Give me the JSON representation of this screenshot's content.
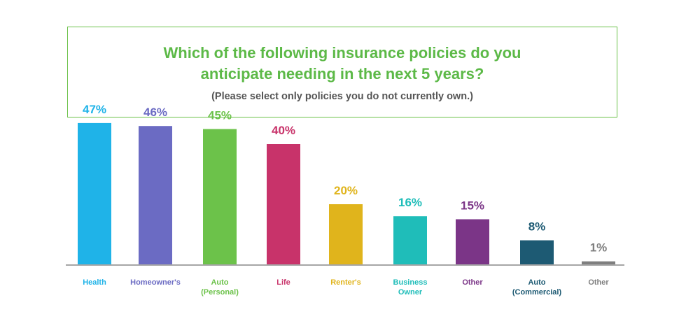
{
  "chart_data": {
    "type": "bar",
    "title": "Which of the following insurance policies do you anticipate needing in the next 5 years?",
    "title_lines": [
      "Which of the following insurance policies do you",
      "anticipate needing in the next 5 years?"
    ],
    "subtitle": "(Please select only policies you do not currently own.)",
    "categories": [
      [
        "Health"
      ],
      [
        "Homeowner's"
      ],
      [
        "Auto",
        "(Personal)"
      ],
      [
        "Life"
      ],
      [
        "Renter's"
      ],
      [
        "Business",
        "Owner"
      ],
      [
        "Other"
      ],
      [
        "Auto",
        "(Commercial)"
      ],
      [
        "Other"
      ]
    ],
    "values": [
      47,
      46,
      45,
      40,
      20,
      16,
      15,
      8,
      1
    ],
    "value_labels": [
      "47%",
      "46%",
      "45%",
      "40%",
      "20%",
      "16%",
      "15%",
      "8%",
      "1%"
    ],
    "colors": [
      "#1fb3e8",
      "#6b6bc3",
      "#6cc24a",
      "#c8336a",
      "#e0b41c",
      "#1fbdb9",
      "#7b3587",
      "#1d5a73",
      "#7f7f7f"
    ],
    "ylim": [
      0,
      50
    ],
    "grid": false,
    "legend": "none"
  }
}
